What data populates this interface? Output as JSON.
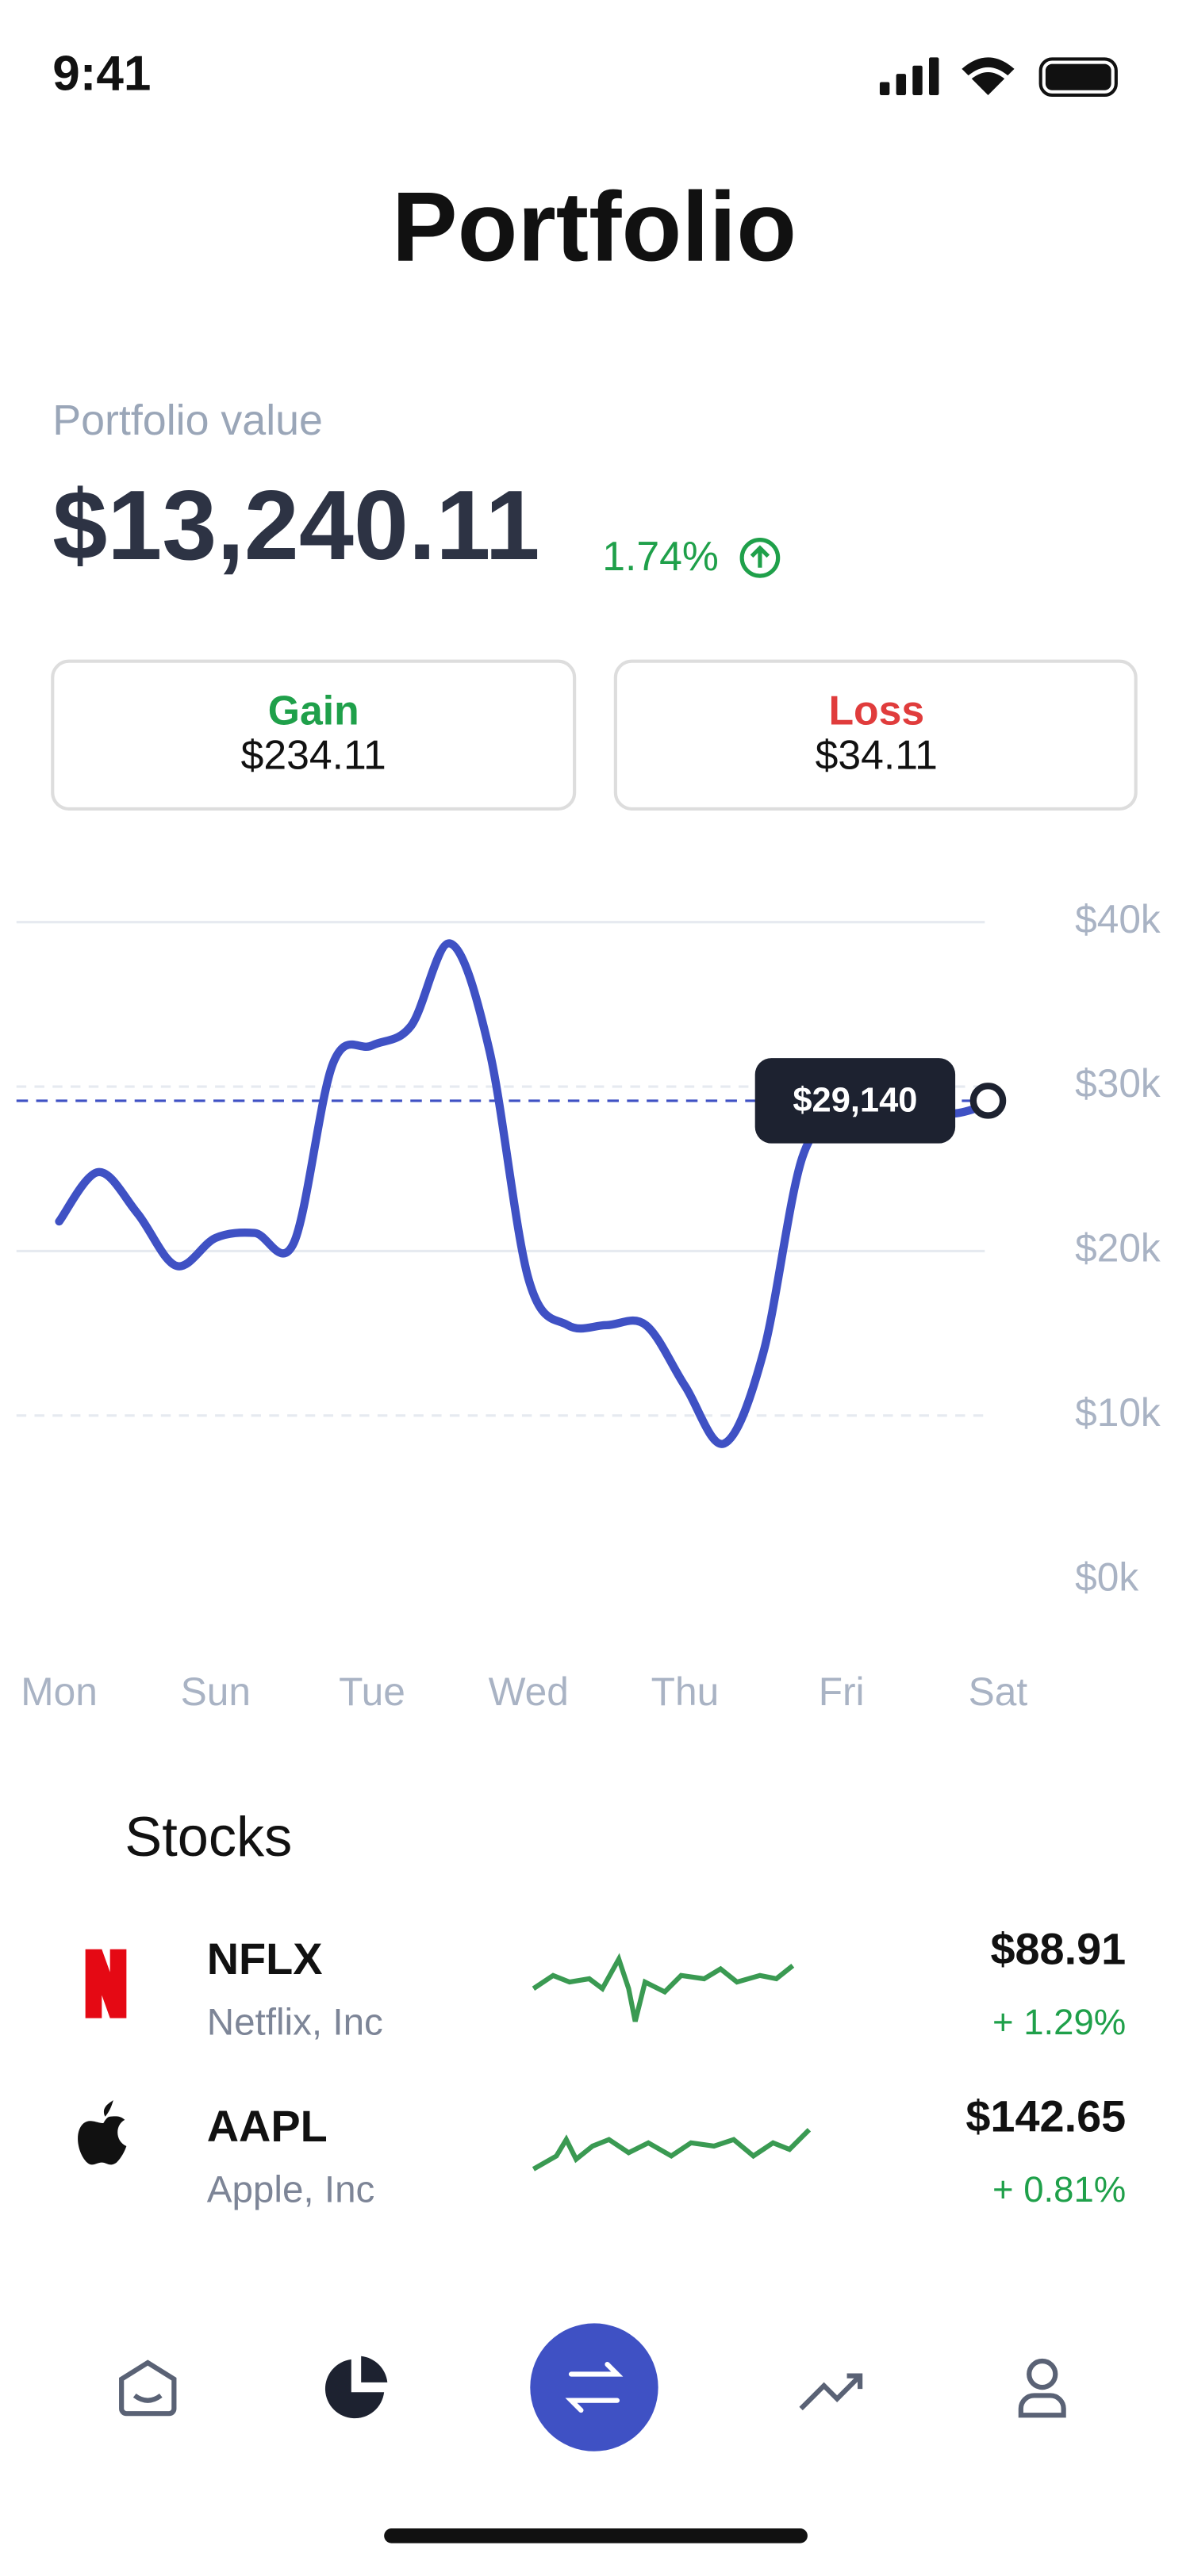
{
  "status": {
    "time": "9:41"
  },
  "header": {
    "title": "Portfolio"
  },
  "summary": {
    "label": "Portfolio value",
    "value": "$13,240.11",
    "change": "1.74%"
  },
  "cards": [
    {
      "label": "Gain",
      "value": "$234.11"
    },
    {
      "label": "Loss",
      "value": "$34.11"
    }
  ],
  "chart_data": {
    "type": "line",
    "categories": [
      "Mon",
      null,
      null,
      null,
      "Sun",
      null,
      null,
      null,
      "Tue",
      null,
      null,
      null,
      "Wed",
      null,
      null,
      null,
      "Thu",
      null,
      null,
      null,
      "Fri",
      null,
      null,
      null,
      "Sat"
    ],
    "series": [
      {
        "color": "#3f51c4",
        "values": [
          21.8,
          24.8,
          22.3,
          19.1,
          20.8,
          21.1,
          20.5,
          31.4,
          32.5,
          33.7,
          38.7,
          32.2,
          18.3,
          15.5,
          15.5,
          15.5,
          11.8,
          8.3,
          13.8,
          25.7,
          28,
          28.2,
          28.4,
          28.4,
          29.14
        ]
      }
    ],
    "highlight": {
      "value": 29.14,
      "label": "$29,140"
    },
    "ylim": [
      0,
      40
    ],
    "yticks": [
      {
        "value": 0,
        "label": "$0k"
      },
      {
        "value": 10,
        "label": "$10k"
      },
      {
        "value": 20,
        "label": "$20k"
      },
      {
        "value": 30,
        "label": "$30k"
      },
      {
        "value": 40,
        "label": "$40k"
      }
    ],
    "grid": true
  },
  "stocks": {
    "title": "Stocks",
    "items": [
      {
        "ticker": "NFLX",
        "name": "Netflix, Inc",
        "price": "$88.91",
        "change": "+ 1.29%"
      },
      {
        "ticker": "AAPL",
        "name": "Apple, Inc",
        "price": "$142.65",
        "change": "+ 0.81%"
      }
    ]
  }
}
